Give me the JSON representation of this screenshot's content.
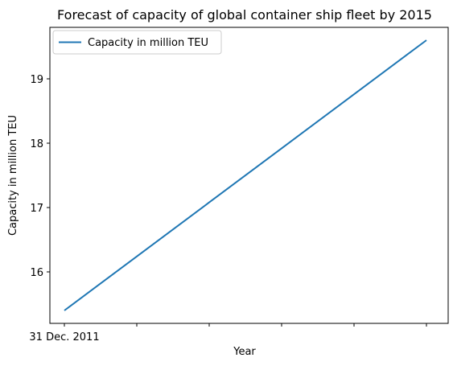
{
  "chart_data": {
    "type": "line",
    "title": "Forecast of capacity of global container ship fleet by 2015",
    "xlabel": "Year",
    "ylabel": "Capacity in million TEU",
    "x_ticks": [
      "31 Dec. 2011",
      "",
      "",
      "",
      "",
      ""
    ],
    "yticks": [
      16,
      17,
      18,
      19
    ],
    "ylim": [
      15.2,
      19.8
    ],
    "grid": false,
    "legend": "top-left",
    "series": [
      {
        "name": "Capacity in million TEU",
        "color": "#1f77b4",
        "values": [
          15.4,
          16.24,
          17.08,
          17.92,
          18.76,
          19.6
        ]
      }
    ]
  }
}
